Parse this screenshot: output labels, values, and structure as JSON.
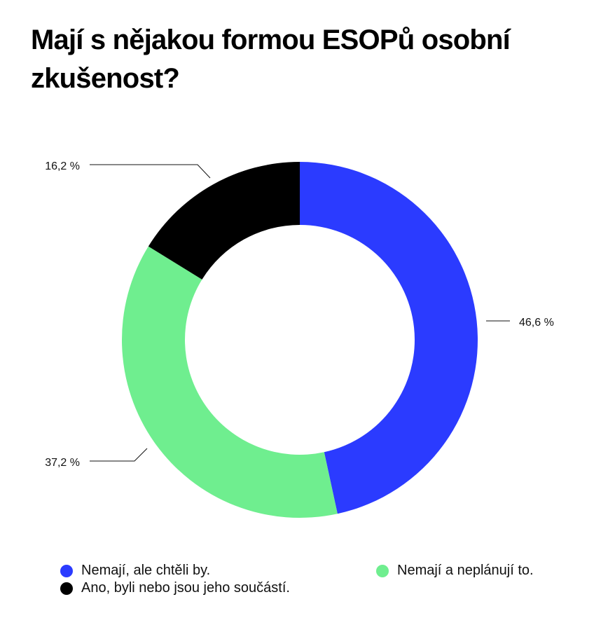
{
  "chart_data": {
    "type": "pie",
    "variant": "donut",
    "title": "Mají s nějakou formou ESOPů osobní zkušenost?",
    "slices": [
      {
        "name": "Nemají, ale chtěli by.",
        "value": 46.6,
        "label": "46,6 %",
        "color": "#2B3BFF"
      },
      {
        "name": "Nemají a neplánují to.",
        "value": 37.2,
        "label": "37,2 %",
        "color": "#6FEE8F"
      },
      {
        "name": "Ano, byli nebo jsou jeho součástí.",
        "value": 16.2,
        "label": "16,2 %",
        "color": "#000000"
      }
    ],
    "legend_placement": "bottom"
  }
}
